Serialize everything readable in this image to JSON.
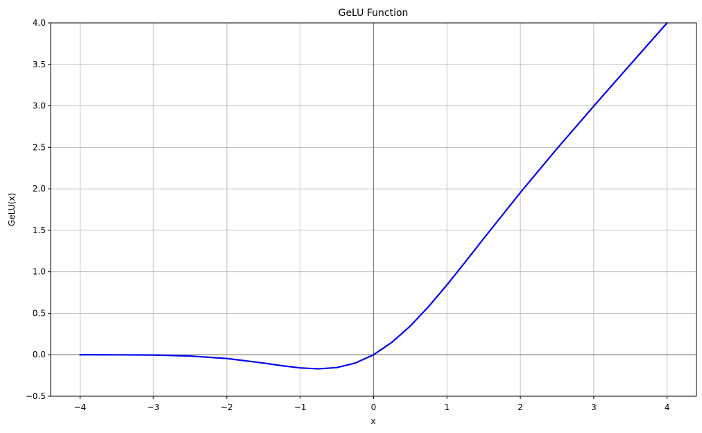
{
  "chart_data": {
    "type": "line",
    "title": "GeLU Function",
    "xlabel": "x",
    "ylabel": "GeLU(x)",
    "xlim": [
      -4.4,
      4.4
    ],
    "ylim": [
      -0.5,
      4.0
    ],
    "xticks": [
      -4,
      -3,
      -2,
      -1,
      0,
      1,
      2,
      3,
      4
    ],
    "xtick_labels": [
      "−4",
      "−3",
      "−2",
      "−1",
      "0",
      "1",
      "2",
      "3",
      "4"
    ],
    "yticks": [
      -0.5,
      0.0,
      0.5,
      1.0,
      1.5,
      2.0,
      2.5,
      3.0,
      3.5,
      4.0
    ],
    "ytick_labels": [
      "−0.5",
      "0.0",
      "0.5",
      "1.0",
      "1.5",
      "2.0",
      "2.5",
      "3.0",
      "3.5",
      "4.0"
    ],
    "grid": true,
    "reference_lines": {
      "x": 0,
      "y": 0,
      "color": "#808080"
    },
    "series": [
      {
        "color": "#0000ee",
        "x": [
          -4.0,
          -3.5,
          -3.0,
          -2.5,
          -2.0,
          -1.5,
          -1.25,
          -1.0,
          -0.75,
          -0.5,
          -0.25,
          0.0,
          0.25,
          0.5,
          0.75,
          1.0,
          1.25,
          1.5,
          2.0,
          2.5,
          3.0,
          3.5,
          4.0
        ],
        "y": [
          -0.0001,
          -0.0008,
          -0.0036,
          -0.0155,
          -0.0454,
          -0.1003,
          -0.1321,
          -0.1587,
          -0.17,
          -0.1543,
          -0.1003,
          0.0,
          0.1497,
          0.3457,
          0.58,
          0.8413,
          1.1179,
          1.3997,
          1.9546,
          2.4845,
          2.9964,
          3.4992,
          3.9999
        ]
      }
    ]
  }
}
